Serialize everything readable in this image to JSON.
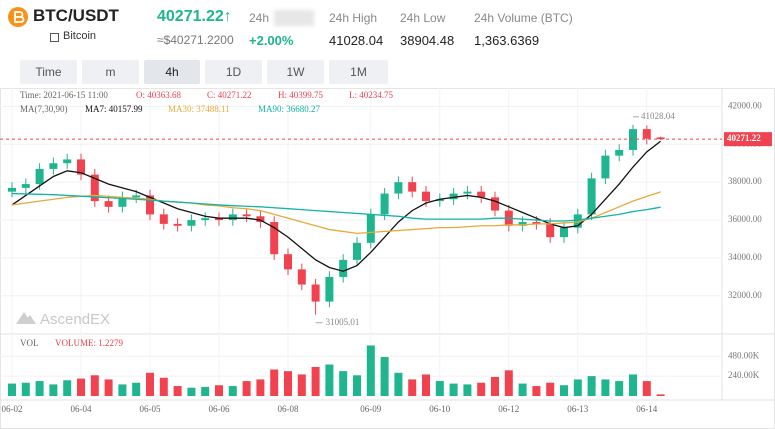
{
  "header": {
    "symbol": "BTC/USDT",
    "name": "Bitcoin",
    "price": "40271.22",
    "arrow": "↑",
    "fiat": "≈$40271.2200",
    "change": "+2.00%",
    "stats": [
      {
        "label": "24h"
      },
      {
        "label": "24h High",
        "value": "41028.04"
      },
      {
        "label": "24h Low",
        "value": "38904.48"
      },
      {
        "label": "24h Volume (BTC)",
        "value": "1,363.6369"
      }
    ]
  },
  "tabs": [
    "Time",
    "m",
    "4h",
    "1D",
    "1W",
    "1M"
  ],
  "price_chart": {
    "type": "candlestick",
    "info": [
      "Time: 2021-06-15 11:00",
      "O: 40363.68",
      "C: 40271.22",
      "H: 40399.75",
      "L: 40234.75"
    ],
    "ma_title": "MA(7,30,90)",
    "watermark": "AscendEX",
    "up_color": "#1fb58f",
    "down_color": "#f0434f",
    "categories": [
      "06-02",
      null,
      null,
      null,
      null,
      "06-04",
      null,
      null,
      null,
      null,
      "06-05",
      null,
      null,
      null,
      null,
      "06-06",
      null,
      null,
      null,
      null,
      "06-08",
      null,
      null,
      null,
      null,
      null,
      "06-09",
      null,
      null,
      null,
      null,
      "06-10",
      null,
      null,
      null,
      null,
      "06-12",
      null,
      null,
      null,
      null,
      "06-13",
      null,
      null,
      null,
      null,
      "06-14",
      null
    ],
    "open": [
      37500,
      37700,
      37900,
      38700,
      39000,
      39200,
      38400,
      37000,
      36700,
      37200,
      37300,
      36300,
      35800,
      35700,
      36000,
      36100,
      36000,
      36300,
      36200,
      35900,
      34200,
      33400,
      32600,
      31700,
      33000,
      33900,
      34800,
      36300,
      37400,
      38000,
      37500,
      37000,
      37100,
      37400,
      37500,
      37200,
      36500,
      35700,
      35900,
      35800,
      35100,
      35600,
      36300,
      38200,
      39400,
      39700,
      40800,
      40363.68
    ],
    "high": [
      38000,
      38200,
      39000,
      39300,
      39500,
      39500,
      38700,
      37300,
      37500,
      37600,
      37600,
      36600,
      36100,
      36300,
      36400,
      36400,
      36600,
      36600,
      36500,
      36200,
      34500,
      33700,
      32900,
      33300,
      34200,
      35100,
      36600,
      37700,
      38300,
      38300,
      37800,
      37400,
      37700,
      37800,
      37800,
      37500,
      36800,
      36200,
      36200,
      36100,
      35900,
      36600,
      38500,
      39700,
      40000,
      41028.04,
      41000,
      40399.75
    ],
    "low": [
      37200,
      37400,
      37600,
      38400,
      38700,
      38100,
      36700,
      36400,
      36400,
      36900,
      36000,
      35500,
      35400,
      35400,
      35700,
      35700,
      35700,
      35900,
      35600,
      33900,
      33100,
      32300,
      31005.01,
      31400,
      32700,
      33600,
      34500,
      36000,
      37100,
      37200,
      36700,
      36700,
      36800,
      37100,
      36900,
      36200,
      35400,
      35400,
      35500,
      34800,
      34800,
      35300,
      36000,
      37900,
      39100,
      39400,
      40000,
      40234.75
    ],
    "close": [
      37700,
      37900,
      38700,
      39000,
      39200,
      38400,
      37000,
      36700,
      37200,
      37300,
      36300,
      35800,
      35700,
      36000,
      36100,
      36000,
      36300,
      36200,
      35900,
      34200,
      33400,
      32600,
      31700,
      33000,
      33900,
      34800,
      36300,
      37400,
      38000,
      37500,
      37000,
      37100,
      37400,
      37500,
      37200,
      36500,
      35700,
      35900,
      35800,
      35100,
      35600,
      36300,
      38200,
      39400,
      39700,
      40800,
      40300,
      40271.22
    ],
    "ma_series": [
      {
        "label": "MA7: 40157.99",
        "color": "#111111",
        "values": [
          36800,
          37300,
          37800,
          38300,
          38600,
          38500,
          38200,
          37900,
          37700,
          37500,
          37200,
          36900,
          36600,
          36400,
          36200,
          36100,
          36100,
          36100,
          36000,
          35600,
          35100,
          34500,
          33900,
          33500,
          33300,
          33600,
          34300,
          35100,
          35900,
          36500,
          36900,
          37100,
          37200,
          37300,
          37200,
          37000,
          36700,
          36400,
          36100,
          35800,
          35600,
          35700,
          36300,
          37100,
          37900,
          38800,
          39600,
          40157.99
        ]
      },
      {
        "label": "MA30: 37488.11",
        "color": "#e8a93a",
        "values": [
          36800,
          36900,
          37000,
          37100,
          37200,
          37250,
          37300,
          37250,
          37200,
          37150,
          37100,
          37000,
          36950,
          36900,
          36800,
          36750,
          36650,
          36600,
          36500,
          36300,
          36100,
          35900,
          35700,
          35500,
          35400,
          35300,
          35350,
          35400,
          35450,
          35500,
          35550,
          35600,
          35600,
          35650,
          35700,
          35700,
          35750,
          35750,
          35800,
          35800,
          35850,
          35900,
          36100,
          36400,
          36700,
          37000,
          37250,
          37488.11
        ]
      },
      {
        "label": "MA90: 36680.27",
        "color": "#13b3a6",
        "values": [
          37400,
          37380,
          37360,
          37340,
          37300,
          37260,
          37220,
          37180,
          37140,
          37100,
          37050,
          37000,
          36950,
          36900,
          36850,
          36800,
          36760,
          36730,
          36700,
          36650,
          36600,
          36550,
          36500,
          36450,
          36400,
          36350,
          36300,
          36250,
          36200,
          36100,
          36050,
          36050,
          36050,
          36050,
          36050,
          36100,
          36100,
          36050,
          36000,
          35950,
          35950,
          36000,
          36100,
          36200,
          36300,
          36450,
          36550,
          36680.27
        ]
      }
    ],
    "ylim": [
      30200,
      42600
    ],
    "yticks": [
      {
        "value": 32000,
        "label": "32000.00"
      },
      {
        "value": 34000,
        "label": "34000.00"
      },
      {
        "value": 36000,
        "label": "36000.00"
      },
      {
        "value": 38000,
        "label": "38000.00"
      },
      {
        "value": 40000,
        "label": "40000.00"
      },
      {
        "value": 42000,
        "label": "42000.00"
      }
    ],
    "last_price": 40271.22,
    "high_note": "41028.04",
    "low_note": "31005.01",
    "volume_title": "VOL",
    "volume_label": "VOLUME: 1.2279",
    "volume": [
      150000,
      160000,
      180000,
      140000,
      190000,
      210000,
      250000,
      200000,
      140000,
      160000,
      280000,
      220000,
      120000,
      100000,
      110000,
      130000,
      120000,
      180000,
      200000,
      320000,
      300000,
      260000,
      350000,
      380000,
      300000,
      250000,
      610000,
      470000,
      280000,
      200000,
      260000,
      180000,
      150000,
      140000,
      160000,
      230000,
      310000,
      150000,
      120000,
      160000,
      130000,
      200000,
      240000,
      200000,
      180000,
      260000,
      180000,
      20000
    ],
    "vlim": [
      0,
      700000
    ],
    "vticks": [
      {
        "value": 240000,
        "label": "240.00K"
      },
      {
        "value": 480000,
        "label": "480.00K"
      }
    ]
  }
}
